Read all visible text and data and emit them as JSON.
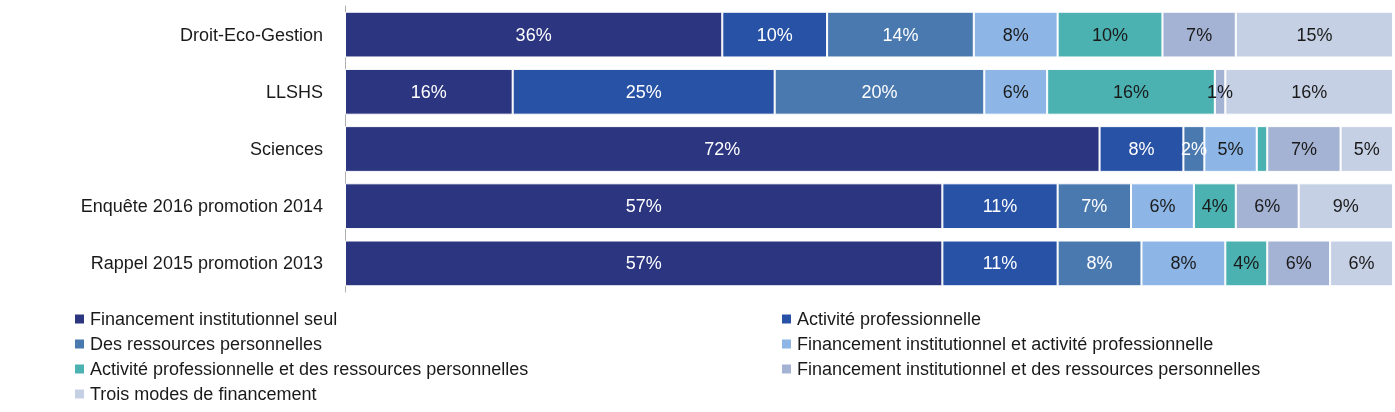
{
  "chart_data": {
    "type": "bar",
    "orientation": "horizontal",
    "stacked": true,
    "categories": [
      "Droit-Eco-Gestion",
      "LLSHS",
      "Sciences",
      "Enquête 2016 promotion 2014",
      "Rappel 2015 promotion 2013"
    ],
    "xlim": [
      0,
      100
    ],
    "tick_labels": "y",
    "legend": "bottom",
    "grid": false,
    "series": [
      {
        "name": "Financement institutionnel seul",
        "color": "#2b3580",
        "values": [
          36,
          16,
          72,
          57,
          57
        ],
        "value_labels": [
          "36%",
          "16%",
          "72%",
          "57%",
          "57%"
        ]
      },
      {
        "name": "Activité professionnelle",
        "color": "#2852a6",
        "values": [
          10,
          25,
          8,
          11,
          11
        ],
        "value_labels": [
          "10%",
          "25%",
          "8%",
          "11%",
          "11%"
        ]
      },
      {
        "name": "Des ressources personnelles",
        "color": "#4a79b0",
        "values": [
          14,
          20,
          2,
          7,
          8
        ],
        "value_labels": [
          "14%",
          "20%",
          "2%",
          "7%",
          "8%"
        ]
      },
      {
        "name": "Financement institutionnel et activité professionnelle",
        "color": "#8db6e6",
        "values": [
          8,
          6,
          5,
          6,
          8
        ],
        "value_labels": [
          "8%",
          "6%",
          "5%",
          "6%",
          "8%"
        ]
      },
      {
        "name": "Activité professionnelle et des ressources personnelles",
        "color": "#4bb1b1",
        "values": [
          10,
          16,
          1,
          4,
          4
        ],
        "value_labels": [
          "10%",
          "16%",
          null,
          "4%",
          "4%"
        ]
      },
      {
        "name": "Financement institutionnel et des ressources personnelles",
        "color": "#a4b2d4",
        "values": [
          7,
          1,
          7,
          6,
          6
        ],
        "value_labels": [
          "7%",
          "1%",
          "7%",
          "6%",
          "6%"
        ]
      },
      {
        "name": "Trois modes de financement",
        "color": "#c6d0e4",
        "values": [
          15,
          16,
          5,
          9,
          6
        ],
        "value_labels": [
          "15%",
          "16%",
          "5%",
          "9%",
          "6%"
        ]
      }
    ]
  }
}
